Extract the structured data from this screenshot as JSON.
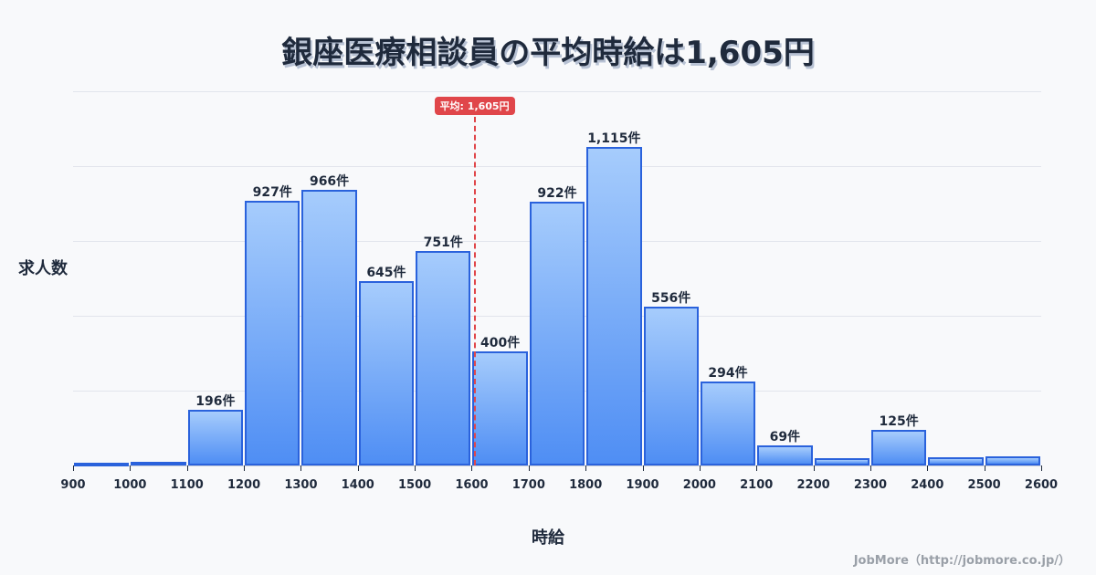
{
  "title": "銀座医療相談員の平均時給は1,605円",
  "y_axis_label": "求人数",
  "x_axis_label": "時給",
  "credit": "JobMore（http://jobmore.co.jp/）",
  "average_badge": "平均: 1,605円",
  "colors": {
    "bar_border": "#2a62dc",
    "bar_top": "#a6ccfc",
    "bar_bottom": "#4f8ef4",
    "average_line": "#e0464a",
    "text": "#1f2a3c"
  },
  "chart_data": {
    "type": "bar",
    "title": "銀座医療相談員の平均時給は1,605円",
    "xlabel": "時給",
    "ylabel": "求人数",
    "bins": [
      [
        900,
        1000
      ],
      [
        1000,
        1100
      ],
      [
        1100,
        1200
      ],
      [
        1200,
        1300
      ],
      [
        1300,
        1400
      ],
      [
        1400,
        1500
      ],
      [
        1500,
        1600
      ],
      [
        1600,
        1700
      ],
      [
        1700,
        1800
      ],
      [
        1800,
        1900
      ],
      [
        1900,
        2000
      ],
      [
        2000,
        2100
      ],
      [
        2100,
        2200
      ],
      [
        2200,
        2300
      ],
      [
        2300,
        2400
      ],
      [
        2400,
        2500
      ],
      [
        2500,
        2600
      ]
    ],
    "categories": [
      "900-1000",
      "1000-1100",
      "1100-1200",
      "1200-1300",
      "1300-1400",
      "1400-1500",
      "1500-1600",
      "1600-1700",
      "1700-1800",
      "1800-1900",
      "1900-2000",
      "2000-2100",
      "2100-2200",
      "2200-2300",
      "2300-2400",
      "2400-2500",
      "2500-2600"
    ],
    "values": [
      5,
      12,
      196,
      927,
      966,
      645,
      751,
      400,
      922,
      1115,
      556,
      294,
      69,
      25,
      125,
      29,
      32
    ],
    "labels": [
      "",
      "",
      "196件",
      "927件",
      "966件",
      "645件",
      "751件",
      "400件",
      "922件",
      "1,115件",
      "556件",
      "294件",
      "69件",
      "",
      "125件",
      "",
      ""
    ],
    "x_ticks": [
      "900",
      "1000",
      "1100",
      "1200",
      "1300",
      "1400",
      "1500",
      "1600",
      "1700",
      "1800",
      "1900",
      "2000",
      "2100",
      "2200",
      "2300",
      "2400",
      "2500",
      "2600"
    ],
    "average": 1605,
    "average_label": "平均: 1,605円",
    "xlim": [
      900,
      2600
    ],
    "ylim": [
      0,
      1310
    ],
    "grid": true,
    "legend": null
  }
}
